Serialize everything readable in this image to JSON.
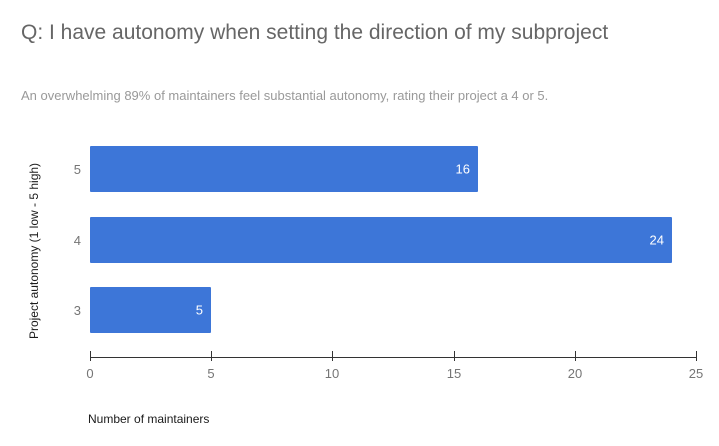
{
  "chart_data": {
    "type": "bar",
    "orientation": "horizontal",
    "title": "Q: I have autonomy when setting the direction of my subproject",
    "subtitle": "An overwhelming 89% of maintainers feel substantial autonomy, rating their project a 4 or 5.",
    "categories": [
      "5",
      "4",
      "3"
    ],
    "values": [
      16,
      24,
      5
    ],
    "xlabel": "Number of maintainers",
    "ylabel": "Project autonomy (1 low - 5 high)",
    "xlim": [
      0,
      25
    ],
    "x_ticks": [
      "0",
      "5",
      "10",
      "15",
      "20",
      "25"
    ],
    "grid": false,
    "legend": "none",
    "bar_color": "#3d76d8",
    "value_label_color": "#ffffff"
  }
}
